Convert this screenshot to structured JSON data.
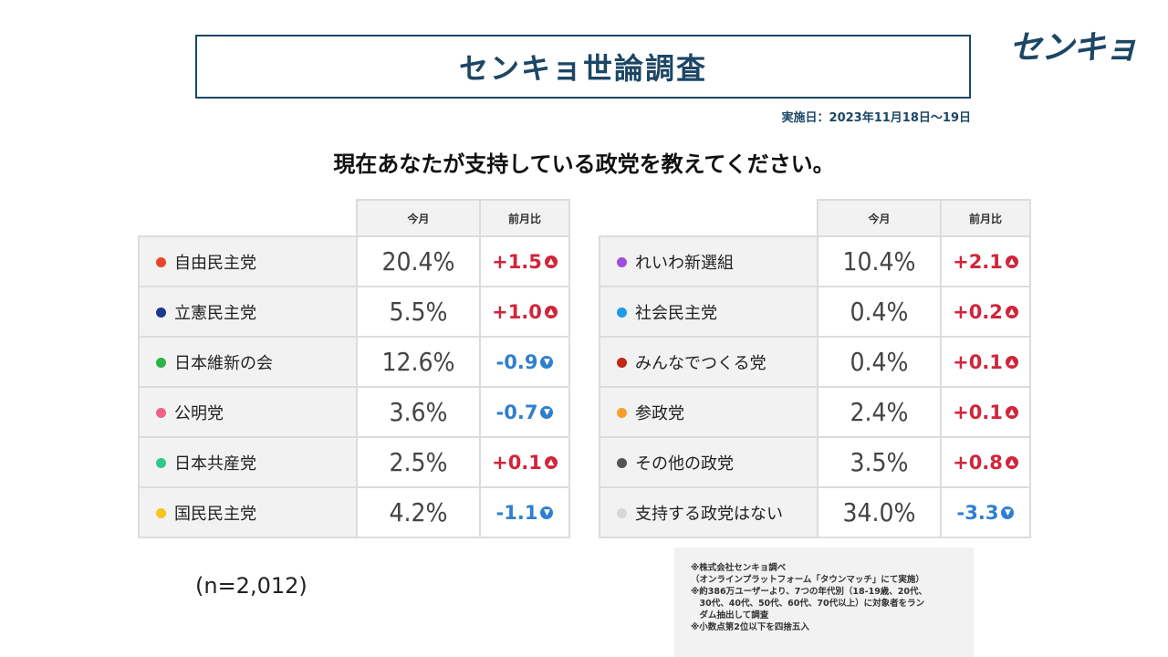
{
  "header": {
    "title": "センキョ世論調査",
    "logo_text": "センキョ",
    "date": "実施日：2023年11月18日～19日"
  },
  "question": "現在あなたが支持している政党を教えてください。",
  "columns": {
    "month": "今月",
    "diff": "前月比"
  },
  "colors": {
    "accent": "#1c4664",
    "increase": "#d1253a",
    "decrease": "#2f7fcf"
  },
  "chart_data": {
    "type": "table",
    "title": "現在あなたが支持している政党を教えてください。",
    "columns": [
      "今月",
      "前月比"
    ],
    "left": [
      {
        "party": "自由民主党",
        "color": "#e8462a",
        "month": "20.4%",
        "diff": "+1.5",
        "direction": "up"
      },
      {
        "party": "立憲民主党",
        "color": "#1a3a8a",
        "month": "5.5%",
        "diff": "+1.0",
        "direction": "up"
      },
      {
        "party": "日本維新の会",
        "color": "#2db34a",
        "month": "12.6%",
        "diff": "-0.9",
        "direction": "down"
      },
      {
        "party": "公明党",
        "color": "#f0608a",
        "month": "3.6%",
        "diff": "-0.7",
        "direction": "down"
      },
      {
        "party": "日本共産党",
        "color": "#2ec98a",
        "month": "2.5%",
        "diff": "+0.1",
        "direction": "up"
      },
      {
        "party": "国民民主党",
        "color": "#f7c41a",
        "month": "4.2%",
        "diff": "-1.1",
        "direction": "down"
      }
    ],
    "right": [
      {
        "party": "れいわ新選組",
        "color": "#a04de0",
        "month": "10.4%",
        "diff": "+2.1",
        "direction": "up"
      },
      {
        "party": "社会民主党",
        "color": "#1e9be8",
        "month": "0.4%",
        "diff": "+0.2",
        "direction": "up"
      },
      {
        "party": "みんなでつくる党",
        "color": "#c0281a",
        "month": "0.4%",
        "diff": "+0.1",
        "direction": "up"
      },
      {
        "party": "参政党",
        "color": "#f5a02a",
        "month": "2.4%",
        "diff": "+0.1",
        "direction": "up"
      },
      {
        "party": "その他の政党",
        "color": "#555555",
        "month": "3.5%",
        "diff": "+0.8",
        "direction": "up"
      },
      {
        "party": "支持する政党はない",
        "color": "#d8d8d8",
        "month": "34.0%",
        "diff": "-3.3",
        "direction": "down"
      }
    ]
  },
  "sample_size": "(n=2,012)",
  "notes": [
    "※株式会社センキョ調べ",
    "（オンラインプラットフォーム「タウンマッチ」にて実施）",
    "※約386万ユーザーより、7つの年代別（18-19歳、20代、",
    "　30代、40代、50代、60代、70代以上）に対象者をラン",
    "　ダム抽出して調査",
    "※小数点第2位以下を四捨五入"
  ]
}
